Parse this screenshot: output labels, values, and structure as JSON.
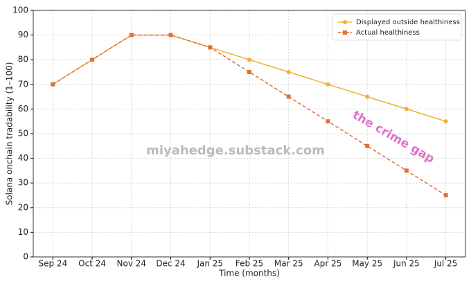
{
  "chart_data": {
    "type": "line",
    "x_label": "Time (months)",
    "y_label": "Solana onchain tradability (1–100)",
    "categories": [
      "Sep 24",
      "Oct 24",
      "Nov 24",
      "Dec 24",
      "Jan 25",
      "Feb 25",
      "Mar 25",
      "Apr 25",
      "May 25",
      "Jun 25",
      "Jul 25"
    ],
    "series": [
      {
        "name": "Displayed outside healthiness",
        "color": "#f0b030",
        "marker": "circle",
        "dash": false,
        "values": [
          70,
          80,
          90,
          90,
          85,
          80,
          75,
          70,
          65,
          60,
          55
        ]
      },
      {
        "name": "Actual healthiness",
        "color": "#e07035",
        "marker": "square",
        "dash": true,
        "values": [
          70,
          80,
          90,
          90,
          85,
          75,
          65,
          55,
          45,
          35,
          25
        ]
      }
    ],
    "ylim": [
      0,
      100
    ],
    "yticks": [
      0,
      10,
      20,
      30,
      40,
      50,
      60,
      70,
      80,
      90,
      100
    ],
    "grid": true,
    "legend": "upper right",
    "annotations": [
      "miyahedge.substack.com",
      "the crime gap"
    ]
  }
}
